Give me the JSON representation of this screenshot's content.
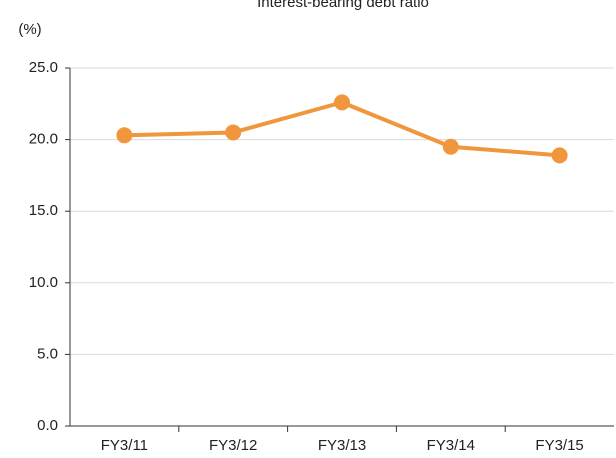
{
  "chart_data": {
    "type": "line",
    "title": "Interest-bearing debt ratio",
    "y_label": "(%)",
    "categories": [
      "FY3/11",
      "FY3/12",
      "FY3/13",
      "FY3/14",
      "FY3/15"
    ],
    "series": [
      {
        "name": "Interest-bearing debt ratio",
        "color": "#f0963c",
        "values": [
          20.3,
          20.5,
          22.6,
          19.5,
          18.9
        ]
      }
    ],
    "ylim": [
      0,
      25
    ],
    "yticks": [
      {
        "value": 0,
        "label": "0.0"
      },
      {
        "value": 5,
        "label": "5.0"
      },
      {
        "value": 10,
        "label": "10.0"
      },
      {
        "value": 15,
        "label": "15.0"
      },
      {
        "value": 20,
        "label": "20.0"
      },
      {
        "value": 25,
        "label": "25.0"
      }
    ],
    "grid": true
  }
}
